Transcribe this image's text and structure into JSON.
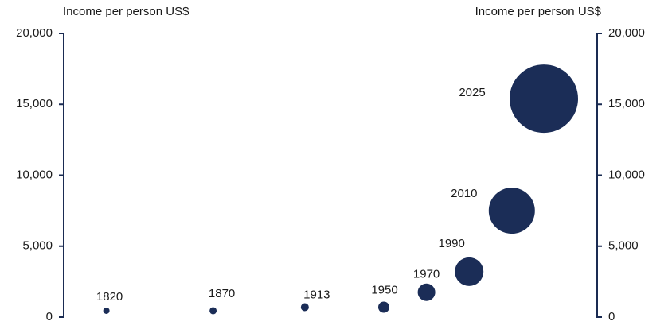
{
  "chart_data": {
    "type": "bubble",
    "y_label": "Income per person US$",
    "y2_label": "Income per person US$",
    "x": [
      1820,
      1870,
      1913,
      1950,
      1970,
      1990,
      2010,
      2025
    ],
    "labels": [
      "1820",
      "1870",
      "1913",
      "1950",
      "1970",
      "1990",
      "2010",
      "2025"
    ],
    "values": [
      450,
      450,
      700,
      700,
      1750,
      3200,
      7500,
      15400
    ],
    "sizes": [
      16,
      20,
      25,
      49,
      121,
      324,
      841,
      1849
    ],
    "color": "#1b2d57",
    "xlim": [
      1800,
      2050
    ],
    "ylim": [
      0,
      20000
    ],
    "yticks": [
      0,
      {
        "value": 5000,
        "label": "5,000"
      },
      {
        "value": 10000,
        "label": "10,000"
      },
      {
        "value": 15000,
        "label": "15,000"
      },
      {
        "value": 20000,
        "label": "20,000"
      }
    ],
    "y2lim": [
      0,
      20000
    ],
    "y2ticks": [
      0,
      {
        "value": 5000,
        "label": "5,000"
      },
      {
        "value": 10000,
        "label": "10,000"
      },
      {
        "value": 15000,
        "label": "15,000"
      },
      {
        "value": 20000,
        "label": "20,000"
      }
    ]
  }
}
